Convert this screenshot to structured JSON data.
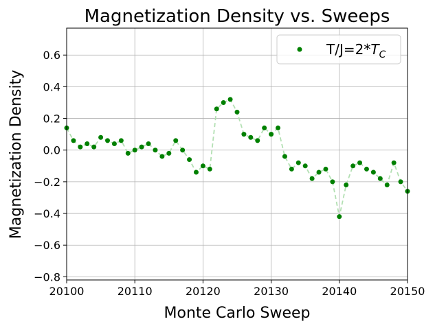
{
  "chart_data": {
    "type": "line",
    "title": "Magnetization Density vs. Sweeps",
    "xlabel": "Monte Carlo Sweep",
    "ylabel": "Magnetization Density",
    "xlim": [
      20100,
      20150
    ],
    "ylim": [
      -0.82,
      0.77
    ],
    "xticks": [
      20100,
      20110,
      20120,
      20130,
      20140,
      20150
    ],
    "yticks": [
      -0.8,
      -0.6,
      -0.4,
      -0.2,
      0.0,
      0.2,
      0.4,
      0.6
    ],
    "xtick_labels": [
      "20100",
      "20110",
      "20120",
      "20130",
      "20140",
      "20150"
    ],
    "ytick_labels": [
      "−0.8",
      "−0.6",
      "−0.4",
      "−0.2",
      "0.0",
      "0.2",
      "0.4",
      "0.6"
    ],
    "grid": true,
    "legend_position": "top-right",
    "series": [
      {
        "name": "T/J=2*",
        "name_subscript": "C",
        "name_italic_symbol": "T",
        "marker_color": "#008000",
        "line_color": "#b3e0b3",
        "line_style": "dashed",
        "x": [
          20100,
          20101,
          20102,
          20103,
          20104,
          20105,
          20106,
          20107,
          20108,
          20109,
          20110,
          20111,
          20112,
          20113,
          20114,
          20115,
          20116,
          20117,
          20118,
          20119,
          20120,
          20121,
          20122,
          20123,
          20124,
          20125,
          20126,
          20127,
          20128,
          20129,
          20130,
          20131,
          20132,
          20133,
          20134,
          20135,
          20136,
          20137,
          20138,
          20139,
          20140,
          20141,
          20142,
          20143,
          20144,
          20145,
          20146,
          20147,
          20148,
          20149,
          20150
        ],
        "values": [
          0.14,
          0.06,
          0.02,
          0.04,
          0.02,
          0.08,
          0.06,
          0.04,
          0.06,
          -0.02,
          0.0,
          0.02,
          0.04,
          0.0,
          -0.04,
          -0.02,
          0.06,
          0.0,
          -0.06,
          -0.14,
          -0.1,
          -0.12,
          0.26,
          0.3,
          0.32,
          0.24,
          0.1,
          0.08,
          0.06,
          0.14,
          0.1,
          0.14,
          -0.04,
          -0.12,
          -0.08,
          -0.1,
          -0.18,
          -0.14,
          -0.12,
          -0.2,
          -0.42,
          -0.22,
          -0.1,
          -0.08,
          -0.12,
          -0.14,
          -0.18,
          -0.22,
          -0.08,
          -0.2,
          -0.26
        ]
      }
    ]
  }
}
